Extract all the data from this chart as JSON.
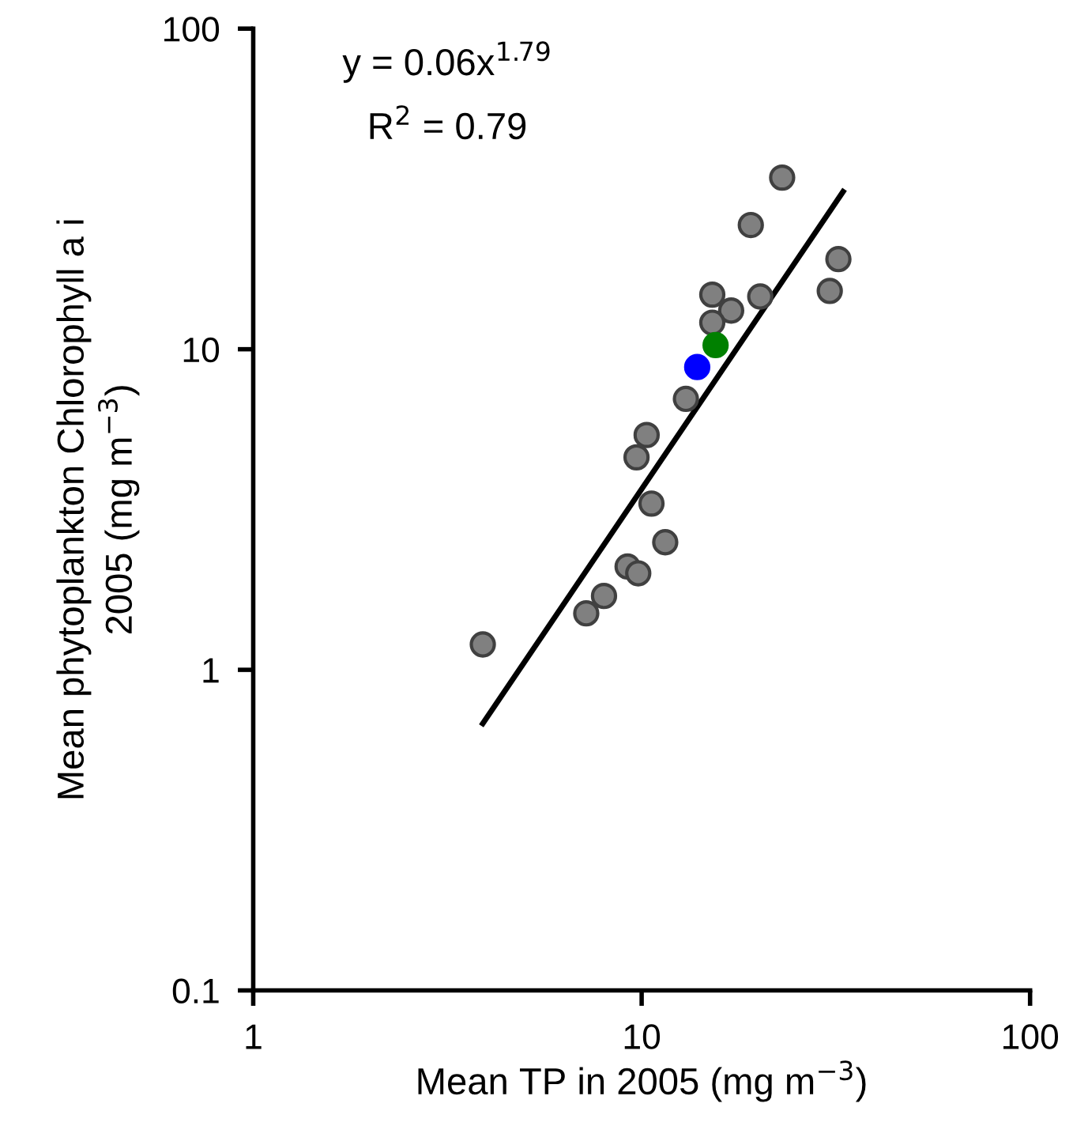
{
  "chart_data": {
    "type": "scatter",
    "xlabel": "Mean TP in 2005 (mg m$^{−3}$)",
    "ylabel": "Mean phytoplankton Chlorophyll a i\n2005 (mg m$^{−3}$)",
    "annotations": [
      "y = 0.06x$^{1.79}$",
      "R$^{2}$ = 0.79"
    ],
    "log": "xy",
    "xlim": [
      1,
      100
    ],
    "ylim": [
      0.1,
      100
    ],
    "xticks": [
      1,
      10,
      100
    ],
    "yticks": [
      0.1,
      1,
      10,
      100
    ],
    "grid": false,
    "legend": false,
    "marker": "circle",
    "series": [
      {
        "color": "#808080",
        "x": [
          23.0,
          19.1,
          32.1,
          30.5,
          20.2,
          15.2,
          17.0,
          15.2,
          13.0,
          10.3,
          9.7,
          10.6,
          11.5,
          9.2,
          9.8,
          8.0,
          7.2,
          3.9
        ],
        "values": [
          34.3,
          24.4,
          19.1,
          15.2,
          14.6,
          14.8,
          13.2,
          12.1,
          7.0,
          5.4,
          4.6,
          3.3,
          2.5,
          2.1,
          2.0,
          1.7,
          1.5,
          1.2
        ]
      },
      {
        "color": "#0000ff",
        "x": [
          13.9
        ],
        "values": [
          8.8
        ]
      },
      {
        "color": "#008000",
        "x": [
          15.5
        ],
        "values": [
          10.3
        ]
      },
      {
        "type": "line",
        "color": "#000000",
        "line_style": "solid",
        "marker": "none",
        "x": [
          3.9,
          33
        ],
        "values": [
          0.68,
          31
        ]
      }
    ]
  }
}
